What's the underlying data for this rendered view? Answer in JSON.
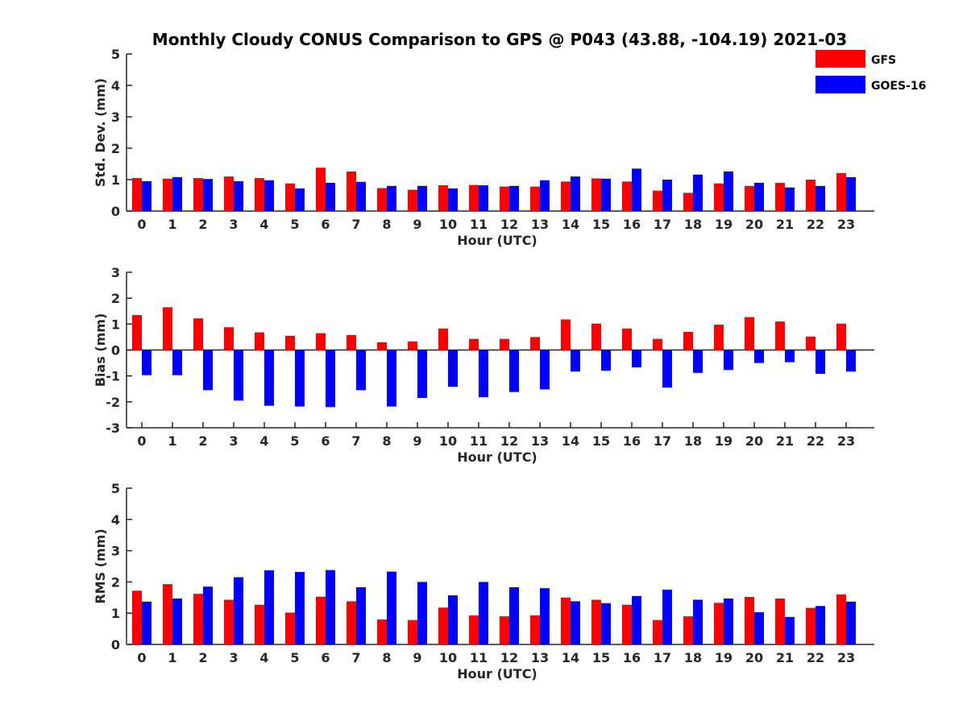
{
  "colors": {
    "gfs": "#ff0000",
    "goes": "#0000ff",
    "axis": "#262626"
  },
  "chart_data": {
    "type": "bar",
    "title": "Monthly Cloudy CONUS Comparison to GPS @ P043 (43.88, -104.19) 2021-03",
    "legend": {
      "placement": "top-right",
      "entries": [
        "GFS",
        "GOES-16"
      ]
    },
    "categories": [
      "0",
      "1",
      "2",
      "3",
      "4",
      "5",
      "6",
      "7",
      "8",
      "9",
      "10",
      "11",
      "12",
      "13",
      "14",
      "15",
      "16",
      "17",
      "18",
      "19",
      "20",
      "21",
      "22",
      "23"
    ],
    "panels": [
      {
        "ylabel": "Std. Dev. (mm)",
        "xlabel": "Hour (UTC)",
        "ylim": [
          0,
          5
        ],
        "yticks": [
          "0",
          "1",
          "2",
          "3",
          "4",
          "5"
        ],
        "series": [
          {
            "name": "GFS",
            "values": [
              1.05,
              1.03,
              1.05,
              1.1,
              1.05,
              0.88,
              1.38,
              1.26,
              0.73,
              0.68,
              0.82,
              0.83,
              0.78,
              0.78,
              0.94,
              1.04,
              0.94,
              0.65,
              0.58,
              0.88,
              0.8,
              0.9,
              1.0,
              1.21
            ]
          },
          {
            "name": "GOES-16",
            "values": [
              0.95,
              1.08,
              1.02,
              0.95,
              0.98,
              0.72,
              0.9,
              0.93,
              0.8,
              0.8,
              0.72,
              0.82,
              0.8,
              0.98,
              1.1,
              1.03,
              1.35,
              1.0,
              1.16,
              1.26,
              0.9,
              0.75,
              0.8,
              1.08
            ]
          }
        ]
      },
      {
        "ylabel": "Bias (mm)",
        "xlabel": "Hour (UTC)",
        "ylim": [
          -3,
          3
        ],
        "yticks": [
          "-3",
          "-2",
          "-1",
          "0",
          "1",
          "2",
          "3"
        ],
        "series": [
          {
            "name": "GFS",
            "values": [
              1.35,
              1.65,
              1.22,
              0.88,
              0.68,
              0.55,
              0.65,
              0.58,
              0.3,
              0.33,
              0.83,
              0.43,
              0.43,
              0.5,
              1.18,
              1.02,
              0.83,
              0.43,
              0.7,
              0.98,
              1.27,
              1.1,
              0.52,
              1.02
            ]
          },
          {
            "name": "GOES-16",
            "values": [
              -0.97,
              -0.97,
              -1.55,
              -1.95,
              -2.15,
              -2.18,
              -2.2,
              -1.55,
              -2.18,
              -1.85,
              -1.42,
              -1.82,
              -1.62,
              -1.52,
              -0.83,
              -0.8,
              -0.67,
              -1.45,
              -0.88,
              -0.77,
              -0.5,
              -0.47,
              -0.92,
              -0.83
            ]
          }
        ]
      },
      {
        "ylabel": "RMS (mm)",
        "xlabel": "Hour (UTC)",
        "ylim": [
          0,
          5
        ],
        "yticks": [
          "0",
          "1",
          "2",
          "3",
          "4",
          "5"
        ],
        "series": [
          {
            "name": "GFS",
            "values": [
              1.72,
              1.93,
              1.62,
              1.43,
              1.27,
              1.02,
              1.53,
              1.38,
              0.8,
              0.78,
              1.18,
              0.93,
              0.9,
              0.93,
              1.5,
              1.43,
              1.27,
              0.78,
              0.9,
              1.33,
              1.52,
              1.47,
              1.17,
              1.6
            ]
          },
          {
            "name": "GOES-16",
            "values": [
              1.37,
              1.47,
              1.85,
              2.15,
              2.37,
              2.32,
              2.38,
              1.83,
              2.33,
              2.0,
              1.57,
              2.0,
              1.83,
              1.8,
              1.38,
              1.32,
              1.55,
              1.75,
              1.43,
              1.47,
              1.03,
              0.88,
              1.23,
              1.37
            ]
          }
        ]
      }
    ]
  }
}
